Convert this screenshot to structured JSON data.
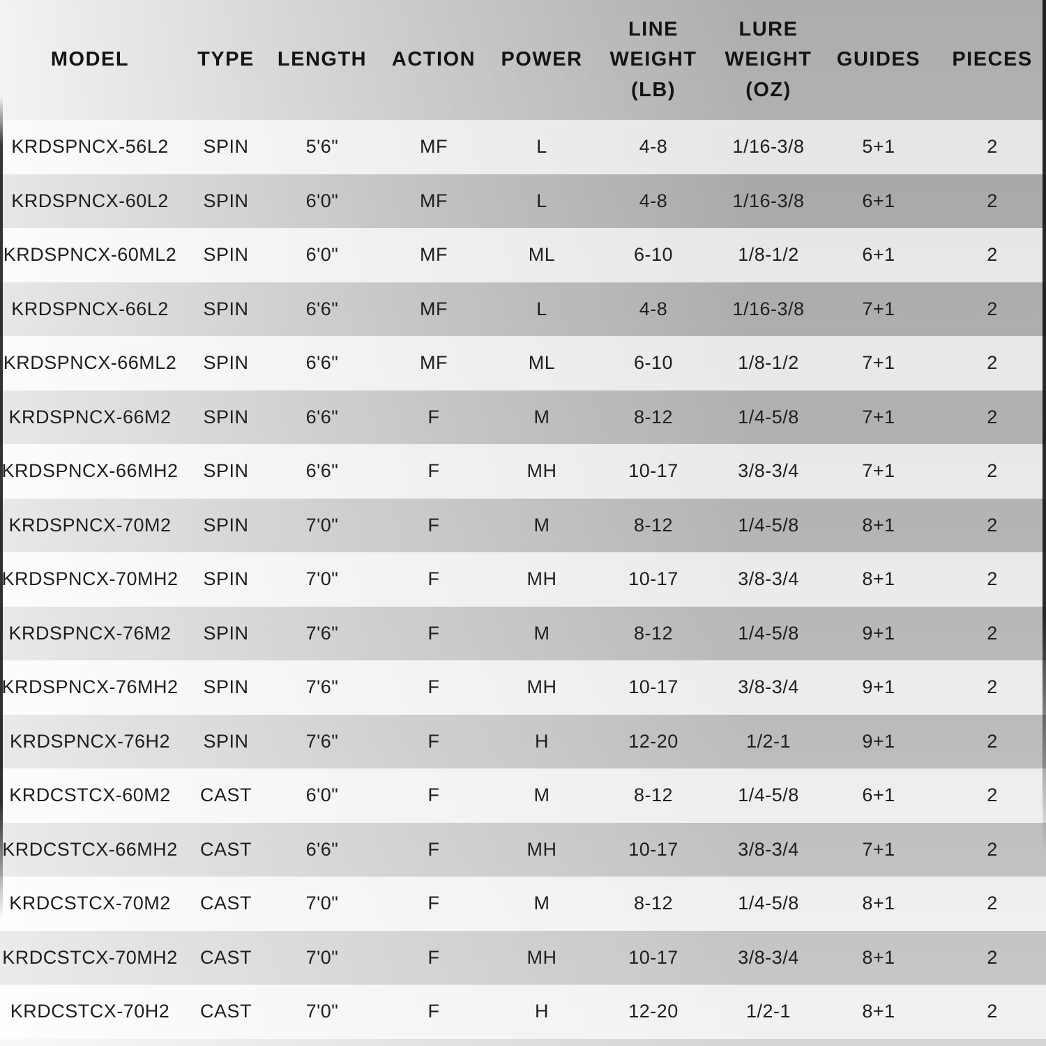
{
  "chart_data": {
    "type": "table",
    "title": "",
    "column_keys": [
      "model",
      "type",
      "length",
      "action",
      "power",
      "line_weight_lb",
      "lure_weight_oz",
      "guides",
      "pieces"
    ],
    "columns": [
      "MODEL",
      "TYPE",
      "LENGTH",
      "ACTION",
      "POWER",
      "LINE\nWEIGHT\n(LB)",
      "LURE\nWEIGHT\n(OZ)",
      "GUIDES",
      "PIECES"
    ],
    "rows": [
      [
        "KRDSPNCX-56L2",
        "SPIN",
        "5'6\"",
        "MF",
        "L",
        "4-8",
        "1/16-3/8",
        "5+1",
        "2"
      ],
      [
        "KRDSPNCX-60L2",
        "SPIN",
        "6'0\"",
        "MF",
        "L",
        "4-8",
        "1/16-3/8",
        "6+1",
        "2"
      ],
      [
        "KRDSPNCX-60ML2",
        "SPIN",
        "6'0\"",
        "MF",
        "ML",
        "6-10",
        "1/8-1/2",
        "6+1",
        "2"
      ],
      [
        "KRDSPNCX-66L2",
        "SPIN",
        "6'6\"",
        "MF",
        "L",
        "4-8",
        "1/16-3/8",
        "7+1",
        "2"
      ],
      [
        "KRDSPNCX-66ML2",
        "SPIN",
        "6'6\"",
        "MF",
        "ML",
        "6-10",
        "1/8-1/2",
        "7+1",
        "2"
      ],
      [
        "KRDSPNCX-66M2",
        "SPIN",
        "6'6\"",
        "F",
        "M",
        "8-12",
        "1/4-5/8",
        "7+1",
        "2"
      ],
      [
        "KRDSPNCX-66MH2",
        "SPIN",
        "6'6\"",
        "F",
        "MH",
        "10-17",
        "3/8-3/4",
        "7+1",
        "2"
      ],
      [
        "KRDSPNCX-70M2",
        "SPIN",
        "7'0\"",
        "F",
        "M",
        "8-12",
        "1/4-5/8",
        "8+1",
        "2"
      ],
      [
        "KRDSPNCX-70MH2",
        "SPIN",
        "7'0\"",
        "F",
        "MH",
        "10-17",
        "3/8-3/4",
        "8+1",
        "2"
      ],
      [
        "KRDSPNCX-76M2",
        "SPIN",
        "7'6\"",
        "F",
        "M",
        "8-12",
        "1/4-5/8",
        "9+1",
        "2"
      ],
      [
        "KRDSPNCX-76MH2",
        "SPIN",
        "7'6\"",
        "F",
        "MH",
        "10-17",
        "3/8-3/4",
        "9+1",
        "2"
      ],
      [
        "KRDSPNCX-76H2",
        "SPIN",
        "7'6\"",
        "F",
        "H",
        "12-20",
        "1/2-1",
        "9+1",
        "2"
      ],
      [
        "KRDCSTCX-60M2",
        "CAST",
        "6'0\"",
        "F",
        "M",
        "8-12",
        "1/4-5/8",
        "6+1",
        "2"
      ],
      [
        "KRDCSTCX-66MH2",
        "CAST",
        "6'6\"",
        "F",
        "MH",
        "10-17",
        "3/8-3/4",
        "7+1",
        "2"
      ],
      [
        "KRDCSTCX-70M2",
        "CAST",
        "7'0\"",
        "F",
        "M",
        "8-12",
        "1/4-5/8",
        "8+1",
        "2"
      ],
      [
        "KRDCSTCX-70MH2",
        "CAST",
        "7'0\"",
        "F",
        "MH",
        "10-17",
        "3/8-3/4",
        "8+1",
        "2"
      ],
      [
        "KRDCSTCX-70H2",
        "CAST",
        "7'0\"",
        "F",
        "H",
        "12-20",
        "1/2-1",
        "8+1",
        "2"
      ]
    ],
    "layout": {
      "striped": true,
      "first_row_shade": "light",
      "grid": false,
      "legend": "none"
    }
  },
  "colors": {
    "background_top": "#adadab",
    "background_bottom": "#d4d4d2",
    "row_light_overlay": "rgba(255,255,255,0.68)",
    "row_dark_overlay": "rgba(0,0,0,0.05)",
    "header_text": "#141414",
    "cell_text": "#1e1e1e",
    "edge_vignette": "#151515"
  }
}
